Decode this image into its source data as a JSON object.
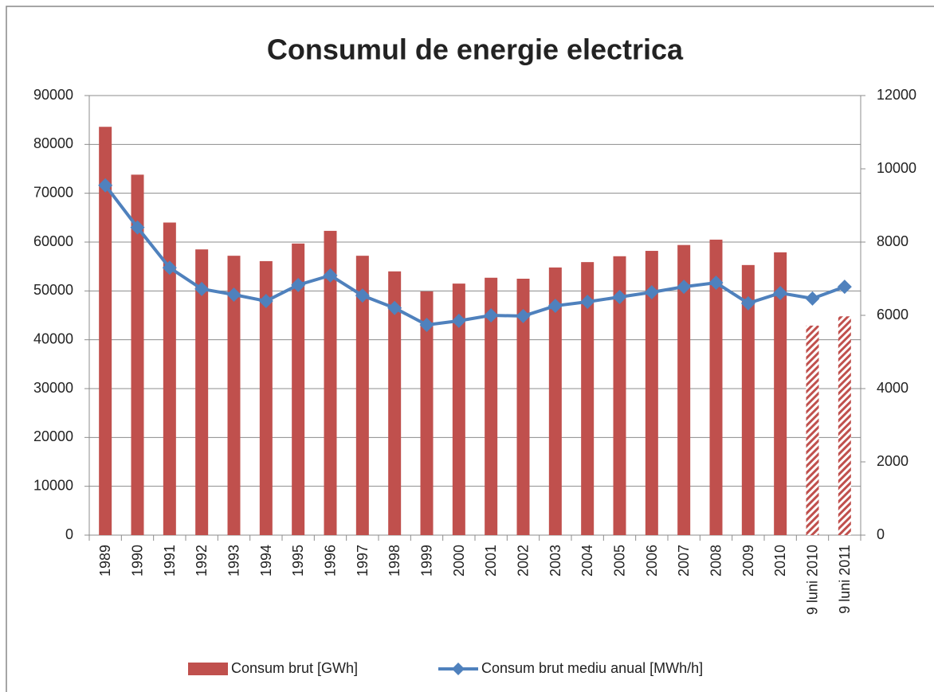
{
  "chart_data": {
    "type": "bar-line",
    "title": "Consumul de energie electrica",
    "categories": [
      "1989",
      "1990",
      "1991",
      "1992",
      "1993",
      "1994",
      "1995",
      "1996",
      "1997",
      "1998",
      "1999",
      "2000",
      "2001",
      "2002",
      "2003",
      "2004",
      "2005",
      "2006",
      "2007",
      "2008",
      "2009",
      "2010",
      "9 luni 2010",
      "9 luni 2011"
    ],
    "series": [
      {
        "name": "Consum brut [GWh]",
        "type": "bar",
        "color": "#c0504d",
        "hatch": [
          false,
          false,
          false,
          false,
          false,
          false,
          false,
          false,
          false,
          false,
          false,
          false,
          false,
          false,
          false,
          false,
          false,
          false,
          false,
          false,
          false,
          false,
          true,
          true
        ],
        "values": [
          83600,
          73800,
          64000,
          58500,
          57200,
          56100,
          59700,
          62300,
          57200,
          54000,
          49900,
          51500,
          52700,
          52500,
          54800,
          55900,
          57100,
          58200,
          59400,
          60500,
          55300,
          57900,
          42900,
          44800
        ]
      },
      {
        "name": "Consum brut mediu anual [MWh/h]",
        "type": "line",
        "axis": "y2",
        "color": "#4f81bd",
        "values": [
          9550,
          8400,
          7300,
          6720,
          6565,
          6390,
          6830,
          7090,
          6540,
          6200,
          5740,
          5850,
          6000,
          5980,
          6260,
          6370,
          6500,
          6630,
          6780,
          6890,
          6330,
          6610,
          6460,
          6780
        ]
      }
    ],
    "ylim": [
      0,
      90000
    ],
    "yticks": [
      0,
      10000,
      20000,
      30000,
      40000,
      50000,
      60000,
      70000,
      80000,
      90000
    ],
    "y2lim": [
      0,
      12000
    ],
    "y2ticks": [
      0,
      2000,
      4000,
      6000,
      8000,
      10000,
      12000
    ],
    "grid": true,
    "legend": "bottom"
  }
}
